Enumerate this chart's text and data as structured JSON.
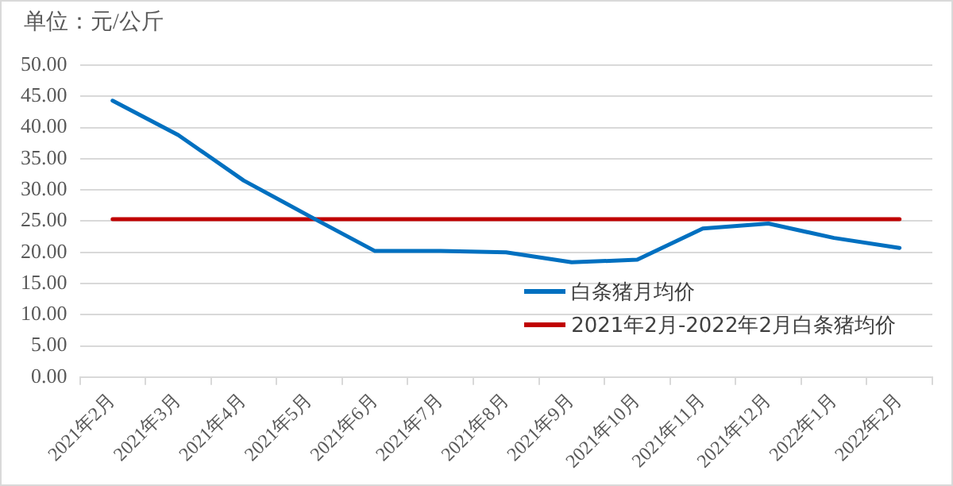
{
  "chart_data": {
    "type": "line",
    "ylabel": "单位：元/公斤",
    "categories": [
      "2021年2月",
      "2021年3月",
      "2021年4月",
      "2021年5月",
      "2021年6月",
      "2021年7月",
      "2021年8月",
      "2021年9月",
      "2021年10月",
      "2021年11月",
      "2021年12月",
      "2022年1月",
      "2022年2月"
    ],
    "series": [
      {
        "name": "白条猪月均价",
        "color": "#0070c0",
        "values": [
          44.3,
          38.8,
          31.5,
          25.8,
          20.2,
          20.2,
          20.0,
          18.4,
          18.8,
          23.8,
          24.6,
          22.3,
          20.7
        ]
      },
      {
        "name": "2021年2月-2022年2月白条猪均价",
        "color": "#c00000",
        "values": [
          25.3,
          25.3,
          25.3,
          25.3,
          25.3,
          25.3,
          25.3,
          25.3,
          25.3,
          25.3,
          25.3,
          25.3,
          25.3
        ]
      }
    ],
    "ylim": [
      0,
      50
    ],
    "yticks": [
      {
        "value": 0,
        "label": "0.00"
      },
      {
        "value": 5,
        "label": "5.00"
      },
      {
        "value": 10,
        "label": "10.00"
      },
      {
        "value": 15,
        "label": "15.00"
      },
      {
        "value": 20,
        "label": "20.00"
      },
      {
        "value": 25,
        "label": "25.00"
      },
      {
        "value": 30,
        "label": "30.00"
      },
      {
        "value": 35,
        "label": "35.00"
      },
      {
        "value": 40,
        "label": "40.00"
      },
      {
        "value": 45,
        "label": "45.00"
      },
      {
        "value": 50,
        "label": "50.00"
      }
    ],
    "grid": "y",
    "legend": "bottom right",
    "marker": "none",
    "line_style": "solid"
  }
}
